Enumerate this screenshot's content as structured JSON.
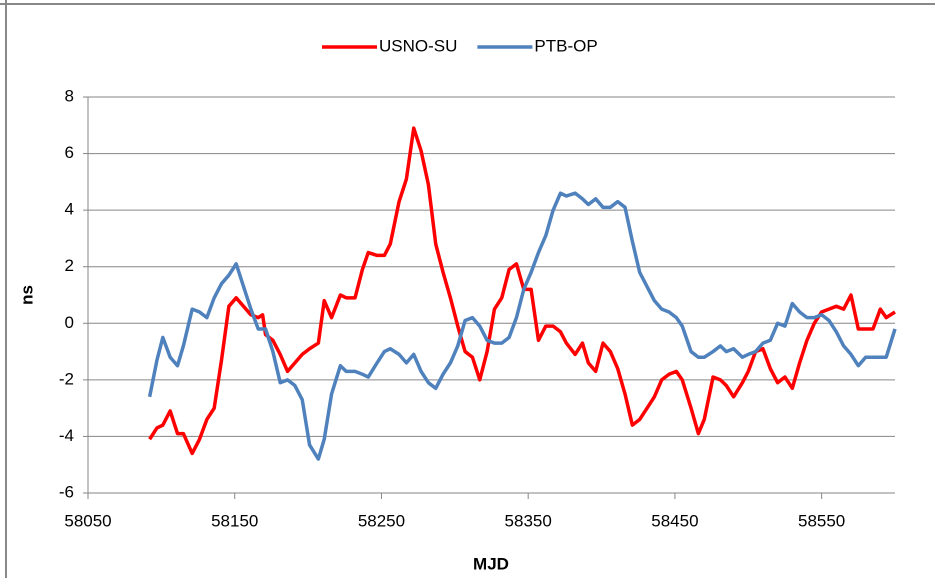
{
  "chart_data": {
    "type": "line",
    "x_label": "MJD",
    "y_label": "ns",
    "x": [
      58092,
      58097,
      58101,
      58106,
      58111,
      58115,
      58121,
      58126,
      58131,
      58136,
      58141,
      58146,
      58151,
      58156,
      58161,
      58166,
      58169,
      58171,
      58176,
      58181,
      58186,
      58191,
      58196,
      58201,
      58207,
      58211,
      58216,
      58222,
      58226,
      58232,
      58237,
      58241,
      58247,
      58252,
      58256,
      58262,
      58267,
      58272,
      58277,
      58282,
      58287,
      58292,
      58297,
      58302,
      58307,
      58312,
      58317,
      58322,
      58327,
      58332,
      58337,
      58342,
      58347,
      58352,
      58357,
      58362,
      58367,
      58372,
      58376,
      58382,
      58387,
      58391,
      58396,
      58401,
      58406,
      58411,
      58416,
      58421,
      58426,
      58431,
      58436,
      58441,
      58446,
      58451,
      58455,
      58461,
      58466,
      58470,
      58476,
      58481,
      58485,
      58490,
      58496,
      58500,
      58505,
      58510,
      58515,
      58520,
      58525,
      58530,
      58535,
      58540,
      58545,
      58550,
      58555,
      58560,
      58565,
      58570,
      58575,
      58580,
      58585,
      58590,
      58594,
      58600
    ],
    "series": [
      {
        "name": "USNO-SU",
        "color": "#ff0000",
        "values": [
          -4.1,
          -3.7,
          -3.6,
          -3.1,
          -3.9,
          -3.9,
          -4.6,
          -4.1,
          -3.4,
          -3.0,
          -1.3,
          0.6,
          0.9,
          0.6,
          0.3,
          0.2,
          0.3,
          -0.4,
          -0.6,
          -1.1,
          -1.7,
          -1.4,
          -1.1,
          -0.9,
          -0.7,
          0.8,
          0.2,
          1.0,
          0.9,
          0.9,
          1.9,
          2.5,
          2.4,
          2.4,
          2.8,
          4.3,
          5.1,
          6.9,
          6.1,
          4.9,
          2.8,
          1.8,
          0.9,
          -0.1,
          -1.0,
          -1.2,
          -2.0,
          -1.0,
          0.5,
          0.9,
          1.9,
          2.1,
          1.2,
          1.2,
          -0.6,
          -0.1,
          -0.1,
          -0.3,
          -0.7,
          -1.1,
          -0.7,
          -1.4,
          -1.7,
          -0.7,
          -1.0,
          -1.6,
          -2.5,
          -3.6,
          -3.4,
          -3.0,
          -2.6,
          -2.0,
          -1.8,
          -1.7,
          -2.0,
          -3.0,
          -3.9,
          -3.4,
          -1.9,
          -2.0,
          -2.2,
          -2.6,
          -2.1,
          -1.7,
          -1.0,
          -0.9,
          -1.6,
          -2.1,
          -1.9,
          -2.3,
          -1.4,
          -0.6,
          0.0,
          0.4,
          0.5,
          0.6,
          0.5,
          1.0,
          -0.2,
          -0.2,
          -0.2,
          0.5,
          0.2,
          0.4
        ]
      },
      {
        "name": "PTB-OP",
        "color": "#4f81bd",
        "values": [
          -2.6,
          -1.3,
          -0.5,
          -1.2,
          -1.5,
          -0.8,
          0.5,
          0.4,
          0.2,
          0.9,
          1.4,
          1.7,
          2.1,
          1.3,
          0.5,
          -0.2,
          -0.2,
          -0.2,
          -1.0,
          -2.1,
          -2.0,
          -2.2,
          -2.7,
          -4.3,
          -4.8,
          -4.1,
          -2.5,
          -1.5,
          -1.7,
          -1.7,
          -1.8,
          -1.9,
          -1.4,
          -1.0,
          -0.9,
          -1.1,
          -1.4,
          -1.1,
          -1.7,
          -2.1,
          -2.3,
          -1.8,
          -1.4,
          -0.8,
          0.1,
          0.2,
          -0.1,
          -0.6,
          -0.7,
          -0.7,
          -0.5,
          0.2,
          1.2,
          1.8,
          2.5,
          3.1,
          4.0,
          4.6,
          4.5,
          4.6,
          4.4,
          4.2,
          4.4,
          4.1,
          4.1,
          4.3,
          4.1,
          2.9,
          1.8,
          1.3,
          0.8,
          0.5,
          0.4,
          0.2,
          -0.1,
          -1.0,
          -1.2,
          -1.2,
          -1.0,
          -0.8,
          -1.0,
          -0.9,
          -1.2,
          -1.1,
          -1.0,
          -0.7,
          -0.6,
          0.0,
          -0.1,
          0.7,
          0.4,
          0.2,
          0.2,
          0.3,
          0.1,
          -0.3,
          -0.8,
          -1.1,
          -1.5,
          -1.2,
          -1.2,
          -1.2,
          -1.2,
          -0.2
        ]
      }
    ],
    "xlim": [
      58050,
      58600
    ],
    "xticks": [
      58050,
      58150,
      58250,
      58350,
      58450,
      58550
    ],
    "ylim": [
      -6,
      8
    ],
    "yticks": [
      -6,
      -4,
      -2,
      0,
      2,
      4,
      6,
      8
    ],
    "grid": true,
    "legend": "top"
  }
}
